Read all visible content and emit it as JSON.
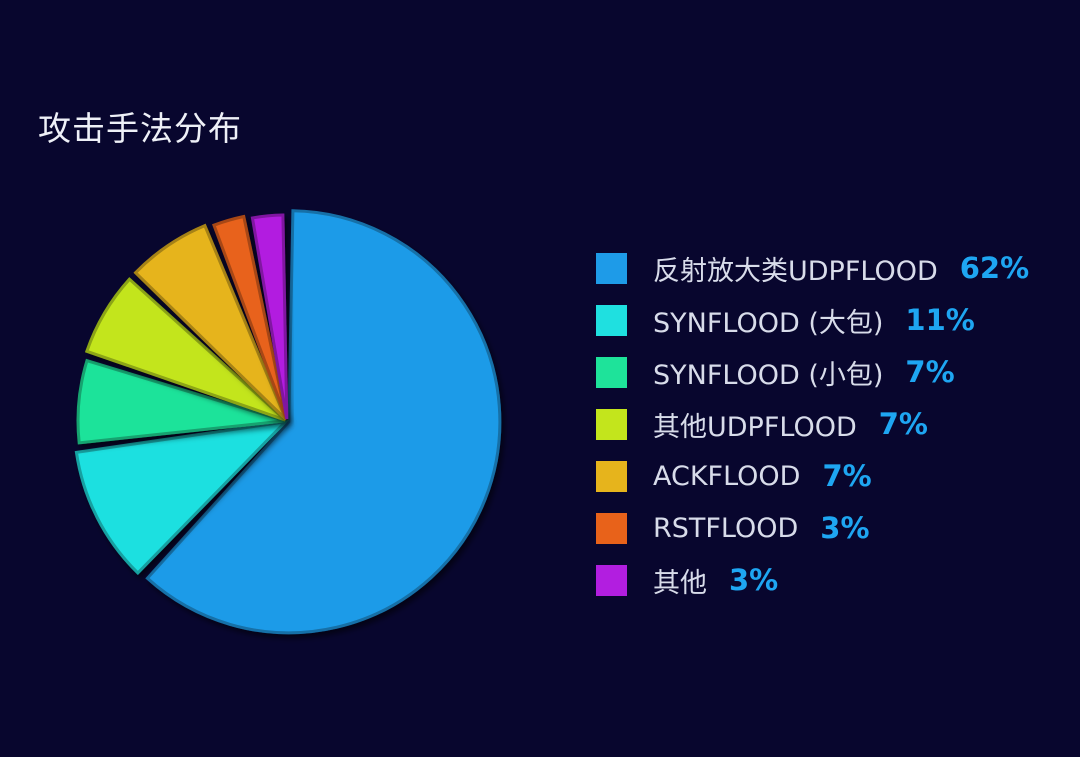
{
  "header": {
    "title": "攻击手法分布"
  },
  "colors": {
    "background": "#08062e",
    "value_text": "#1ea6f2"
  },
  "chart_data": {
    "type": "pie",
    "title": "攻击手法分布",
    "legend_position": "right",
    "slices": [
      {
        "label": "反射放大类UDPFLOOD",
        "value": 62,
        "value_text": "62%",
        "color": "#1e9be8"
      },
      {
        "label": "SYNFLOOD (大包)",
        "value": 11,
        "value_text": "11%",
        "color": "#1fe0e0"
      },
      {
        "label": "SYNFLOOD (小包)",
        "value": 7,
        "value_text": "7%",
        "color": "#1ee39a"
      },
      {
        "label": "其他UDPFLOOD",
        "value": 7,
        "value_text": "7%",
        "color": "#c3e51c"
      },
      {
        "label": "ACKFLOOD",
        "value": 7,
        "value_text": "7%",
        "color": "#e6b41c"
      },
      {
        "label": "RSTFLOOD",
        "value": 3,
        "value_text": "3%",
        "color": "#e8621a"
      },
      {
        "label": "其他",
        "value": 3,
        "value_text": "3%",
        "color": "#b21ee0"
      }
    ]
  }
}
